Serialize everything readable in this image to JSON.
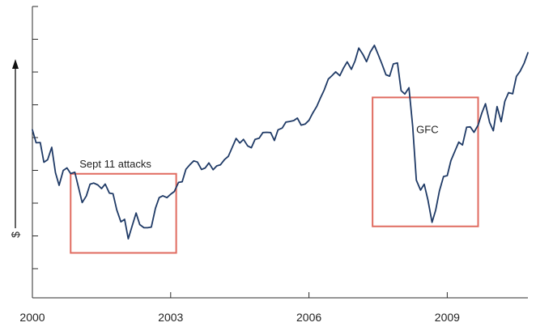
{
  "chart_data": {
    "type": "line",
    "title": "",
    "xlabel": "",
    "ylabel": "$",
    "xlim": [
      2000.0,
      2010.75
    ],
    "ylim": [
      0,
      100
    ],
    "x_ticks": [
      {
        "value": 2000,
        "label": "2000"
      },
      {
        "value": 2003,
        "label": "2003"
      },
      {
        "value": 2006,
        "label": "2006"
      },
      {
        "value": 2009,
        "label": "2009"
      }
    ],
    "y_tick_count": 9,
    "grid": false,
    "legend": "none",
    "line_color": "#1f3a66",
    "annotation_color": "#e06b60",
    "series": [
      {
        "values": [
          [
            2000.0,
            55.2
          ],
          [
            2000.08,
            49.5
          ],
          [
            2000.17,
            49.6
          ],
          [
            2000.25,
            40.9
          ],
          [
            2000.33,
            42.0
          ],
          [
            2000.42,
            47.5
          ],
          [
            2000.5,
            36.3
          ],
          [
            2000.58,
            30.7
          ],
          [
            2000.67,
            37.3
          ],
          [
            2000.75,
            38.4
          ],
          [
            2000.83,
            35.9
          ],
          [
            2000.92,
            36.5
          ],
          [
            2001.0,
            29.9
          ],
          [
            2001.08,
            23.1
          ],
          [
            2001.17,
            26.0
          ],
          [
            2001.25,
            31.2
          ],
          [
            2001.33,
            31.7
          ],
          [
            2001.42,
            30.9
          ],
          [
            2001.5,
            29.3
          ],
          [
            2001.58,
            31.3
          ],
          [
            2001.67,
            27.3
          ],
          [
            2001.75,
            27.0
          ],
          [
            2001.83,
            19.9
          ],
          [
            2001.92,
            14.6
          ],
          [
            2002.0,
            15.7
          ],
          [
            2002.08,
            7.1
          ],
          [
            2002.17,
            13.1
          ],
          [
            2002.25,
            18.5
          ],
          [
            2002.33,
            13.4
          ],
          [
            2002.42,
            12.0
          ],
          [
            2002.5,
            12.0
          ],
          [
            2002.58,
            12.3
          ],
          [
            2002.67,
            20.6
          ],
          [
            2002.75,
            25.3
          ],
          [
            2002.83,
            26.1
          ],
          [
            2002.92,
            25.3
          ],
          [
            2003.0,
            26.8
          ],
          [
            2003.08,
            28.0
          ],
          [
            2003.17,
            32.0
          ],
          [
            2003.25,
            32.3
          ],
          [
            2003.33,
            37.8
          ],
          [
            2003.42,
            39.9
          ],
          [
            2003.5,
            41.5
          ],
          [
            2003.58,
            41.0
          ],
          [
            2003.67,
            37.7
          ],
          [
            2003.75,
            38.4
          ],
          [
            2003.83,
            40.6
          ],
          [
            2003.92,
            37.6
          ],
          [
            2004.0,
            39.3
          ],
          [
            2004.08,
            39.8
          ],
          [
            2004.17,
            42.1
          ],
          [
            2004.25,
            43.5
          ],
          [
            2004.33,
            47.2
          ],
          [
            2004.42,
            51.4
          ],
          [
            2004.5,
            49.4
          ],
          [
            2004.58,
            51.0
          ],
          [
            2004.67,
            48.1
          ],
          [
            2004.75,
            47.3
          ],
          [
            2004.83,
            51.0
          ],
          [
            2004.92,
            51.5
          ],
          [
            2005.0,
            54.0
          ],
          [
            2005.08,
            54.1
          ],
          [
            2005.17,
            54.0
          ],
          [
            2005.25,
            50.5
          ],
          [
            2005.33,
            55.2
          ],
          [
            2005.42,
            56.0
          ],
          [
            2005.5,
            58.6
          ],
          [
            2005.58,
            58.9
          ],
          [
            2005.67,
            59.3
          ],
          [
            2005.75,
            60.4
          ],
          [
            2005.83,
            57.3
          ],
          [
            2005.92,
            57.8
          ],
          [
            2006.0,
            59.4
          ],
          [
            2006.08,
            62.5
          ],
          [
            2006.17,
            65.6
          ],
          [
            2006.25,
            69.3
          ],
          [
            2006.33,
            72.8
          ],
          [
            2006.42,
            77.6
          ],
          [
            2006.5,
            79.1
          ],
          [
            2006.58,
            80.8
          ],
          [
            2006.67,
            79.1
          ],
          [
            2006.75,
            82.5
          ],
          [
            2006.83,
            85.2
          ],
          [
            2006.92,
            81.9
          ],
          [
            2007.0,
            85.6
          ],
          [
            2007.08,
            91.3
          ],
          [
            2007.17,
            88.5
          ],
          [
            2007.25,
            85.3
          ],
          [
            2007.33,
            89.5
          ],
          [
            2007.42,
            92.5
          ],
          [
            2007.5,
            88.5
          ],
          [
            2007.58,
            84.5
          ],
          [
            2007.67,
            79.5
          ],
          [
            2007.75,
            78.9
          ],
          [
            2007.83,
            84.3
          ],
          [
            2007.92,
            84.7
          ],
          [
            2008.0,
            72.5
          ],
          [
            2008.08,
            71.0
          ],
          [
            2008.17,
            73.8
          ],
          [
            2008.25,
            56.7
          ],
          [
            2008.33,
            33.0
          ],
          [
            2008.42,
            28.6
          ],
          [
            2008.5,
            31.2
          ],
          [
            2008.58,
            24.3
          ],
          [
            2008.67,
            14.4
          ],
          [
            2008.75,
            19.8
          ],
          [
            2008.83,
            28.2
          ],
          [
            2008.92,
            34.6
          ],
          [
            2009.0,
            35.0
          ],
          [
            2009.08,
            41.6
          ],
          [
            2009.17,
            46.0
          ],
          [
            2009.25,
            49.8
          ],
          [
            2009.33,
            48.5
          ],
          [
            2009.42,
            56.4
          ],
          [
            2009.5,
            56.5
          ],
          [
            2009.58,
            54.1
          ],
          [
            2009.67,
            57.3
          ],
          [
            2009.75,
            62.6
          ],
          [
            2009.83,
            66.7
          ],
          [
            2009.92,
            58.5
          ],
          [
            2010.0,
            54.8
          ],
          [
            2010.08,
            65.5
          ],
          [
            2010.17,
            58.8
          ],
          [
            2010.25,
            67.8
          ],
          [
            2010.33,
            71.6
          ],
          [
            2010.42,
            71.1
          ],
          [
            2010.5,
            78.8
          ],
          [
            2010.58,
            81.0
          ],
          [
            2010.67,
            84.6
          ],
          [
            2010.75,
            89.2
          ]
        ]
      }
    ],
    "annotations": [
      {
        "label": "Sept 11 attacks",
        "x0": 2000.83,
        "x1": 2003.12,
        "y0": 0.9,
        "y1": 35.8
      },
      {
        "label": "GFC",
        "x0": 2007.38,
        "x1": 2009.67,
        "y0": 12.6,
        "y1": 69.5
      }
    ]
  }
}
